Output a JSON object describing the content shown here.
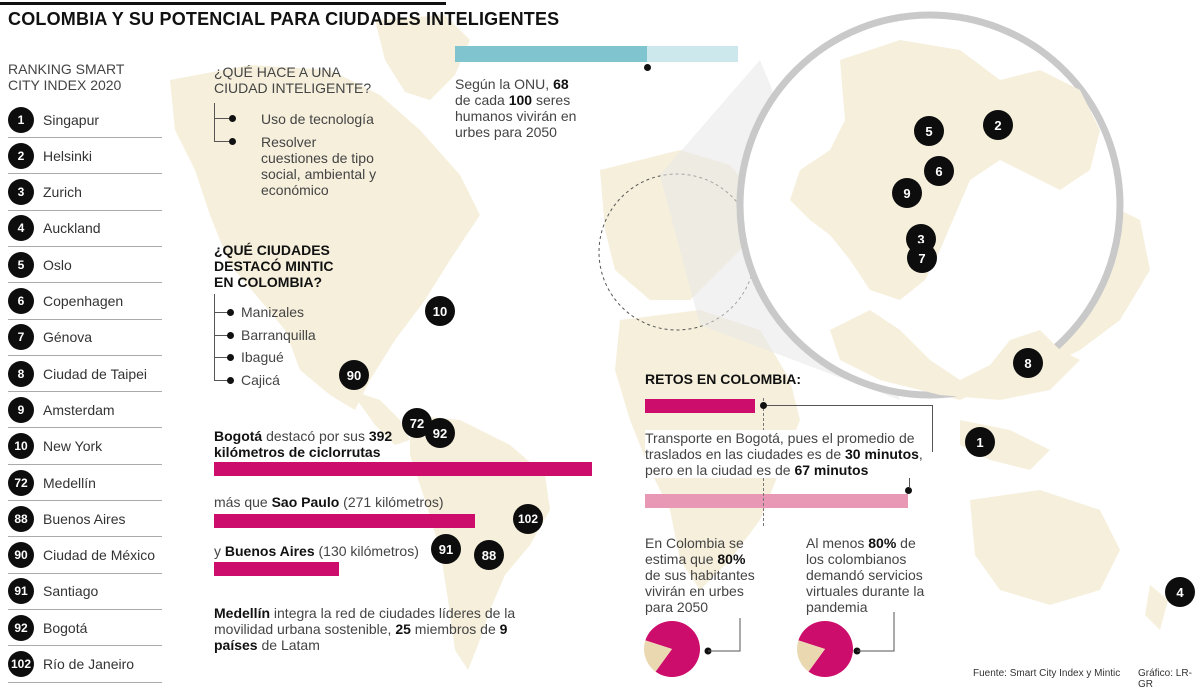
{
  "title": "COLOMBIA Y SU POTENCIAL PARA CIUDADES INTELIGENTES",
  "ranking": {
    "heading_line1": "RANKING SMART",
    "heading_line2": "CITY INDEX 2020",
    "items": [
      {
        "rank": "1",
        "city": "Singapur"
      },
      {
        "rank": "2",
        "city": "Helsinki"
      },
      {
        "rank": "3",
        "city": "Zurich"
      },
      {
        "rank": "4",
        "city": "Auckland"
      },
      {
        "rank": "5",
        "city": "Oslo"
      },
      {
        "rank": "6",
        "city": "Copenhagen"
      },
      {
        "rank": "7",
        "city": "Génova"
      },
      {
        "rank": "8",
        "city": "Ciudad de Taipei"
      },
      {
        "rank": "9",
        "city": "Amsterdam"
      },
      {
        "rank": "10",
        "city": "New York"
      },
      {
        "rank": "72",
        "city": "Medellín"
      },
      {
        "rank": "88",
        "city": "Buenos Aires"
      },
      {
        "rank": "90",
        "city": "Ciudad de México"
      },
      {
        "rank": "91",
        "city": "Santiago"
      },
      {
        "rank": "92",
        "city": "Bogotá"
      },
      {
        "rank": "102",
        "city": "Río de Janeiro"
      }
    ]
  },
  "que_hace": {
    "heading_line1": "¿QUÉ HACE A UNA",
    "heading_line2": "CIUDAD INTELIGENTE?",
    "item1": "Uso de tecnología",
    "item2_line1": "Resolver",
    "item2_line2": "cuestiones de tipo",
    "item2_line3": "social, ambiental y",
    "item2_line4": "económico"
  },
  "onu": {
    "line1_pre": "Según la ONU, ",
    "line1_num": "68",
    "line2_pre": "de cada ",
    "line2_num": "100",
    "line2_post": " seres",
    "line3": "humanos vivirán en",
    "line4": "urbes para 2050"
  },
  "mintic": {
    "heading_line1": "¿QUÉ CIUDADES",
    "heading_line2": "DESTACÓ MINTIC",
    "heading_line3": "EN COLOMBIA?",
    "cities": [
      "Manizales",
      "Barranquilla",
      "Ibagué",
      "Cajicá"
    ]
  },
  "ciclorrutas": {
    "bogota_pre": "Bogotá",
    "bogota_mid": " destacó por sus ",
    "bogota_num": "392",
    "bogota_line2": "kilómetros de ciclorrutas",
    "sao_pre": "más que ",
    "sao_name": "Sao Paulo",
    "sao_post": " (271 kilómetros)",
    "ba_pre": "y ",
    "ba_name": "Buenos Aires",
    "ba_post": " (130 kilómetros)"
  },
  "medellin": {
    "name": "Medellín",
    "line1_post": " integra la red de ciudades líderes de la",
    "line2_pre": "movilidad urbana sostenible, ",
    "line2_num": "25",
    "line2_mid": " miembros de ",
    "line2_num2": "9",
    "line3_bold": "países",
    "line3_post": " de Latam"
  },
  "retos": {
    "heading": "RETOS EN COLOMBIA:",
    "line1": "Transporte en Bogotá, pues el promedio de",
    "line2_pre": "traslados en las ciudades es de ",
    "line2_bold": "30 minutos",
    "line2_post": ",",
    "line3_pre": "pero en la ciudad es de ",
    "line3_bold": "67 minutos"
  },
  "pie_left": {
    "line1": "En Colombia se",
    "line2_pre": "estima que ",
    "line2_bold": "80%",
    "line3": "de sus habitantes",
    "line4": "vivirán en urbes",
    "line5": "para 2050"
  },
  "pie_right": {
    "line1_pre": "Al menos ",
    "line1_bold": "80%",
    "line1_post": " de",
    "line2": "los colombianos",
    "line3": "demandó servicios",
    "line4": "virtuales durante la",
    "line5": "pandemia"
  },
  "footer": {
    "source": "Fuente: Smart City Index y Mintic",
    "credit": "Gráfico: LR-GR"
  },
  "colors": {
    "magenta": "#cc0d6b",
    "pink": "#e898b5",
    "teal": "#7fc4cf",
    "teal_light": "#cce8ec",
    "land": "#f5efdc",
    "pie_light": "#ead9b0"
  },
  "chart_data": [
    {
      "type": "bar",
      "categories": [
        "Bogotá",
        "Sao Paulo",
        "Buenos Aires"
      ],
      "values": [
        392,
        271,
        130
      ],
      "title": "",
      "xlabel": "",
      "ylabel": "kilómetros de ciclorrutas"
    },
    {
      "type": "bar",
      "categories": [
        "promedio ciudades",
        "Bogotá"
      ],
      "values": [
        30,
        67
      ],
      "title": "",
      "ylabel": "minutos"
    },
    {
      "type": "bar",
      "categories": [
        "ONU 2050"
      ],
      "values": [
        68
      ],
      "ylim": [
        0,
        100
      ]
    },
    {
      "type": "pie",
      "categories": [
        "vivirán en urbes",
        "resto"
      ],
      "values": [
        80,
        20
      ]
    },
    {
      "type": "pie",
      "categories": [
        "demandó servicios virtuales",
        "resto"
      ],
      "values": [
        80,
        20
      ]
    }
  ],
  "map_badges": [
    "10",
    "90",
    "72",
    "92",
    "102",
    "91",
    "88",
    "5",
    "2",
    "6",
    "9",
    "3",
    "7",
    "8",
    "1",
    "4"
  ]
}
